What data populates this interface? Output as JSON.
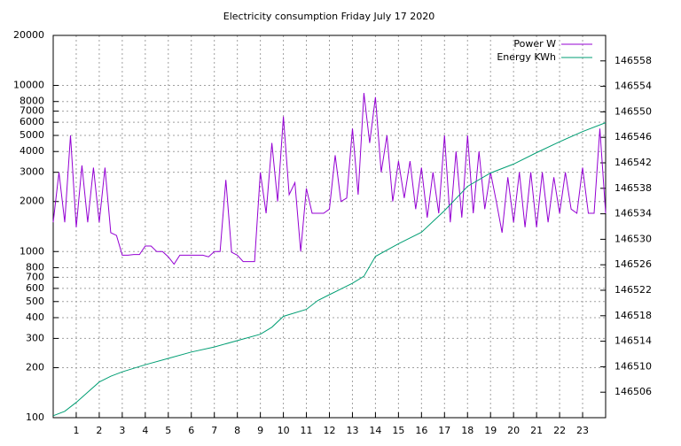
{
  "chart_data": {
    "type": "line",
    "title": "Electricity consumption Friday July 17 2020",
    "xlim": [
      0,
      24
    ],
    "xticks": [
      1,
      2,
      3,
      4,
      5,
      6,
      7,
      8,
      9,
      10,
      11,
      12,
      13,
      14,
      15,
      16,
      17,
      18,
      19,
      20,
      21,
      22,
      23
    ],
    "ylim": [
      100,
      20000
    ],
    "ylog": true,
    "yticks": [
      100,
      200,
      300,
      400,
      500,
      600,
      700,
      800,
      1000,
      2000,
      3000,
      4000,
      5000,
      6000,
      7000,
      8000,
      10000,
      20000
    ],
    "y2lim": [
      146502,
      146562
    ],
    "y2ticks": [
      146506,
      146510,
      146514,
      146518,
      146522,
      146526,
      146530,
      146534,
      146538,
      146542,
      146546,
      146550,
      146554,
      146558
    ],
    "grid": true,
    "legend": "top-right",
    "series": [
      {
        "name": "Power W",
        "color": "#9400d3",
        "x": [
          0,
          0.25,
          0.5,
          0.75,
          1,
          1.25,
          1.5,
          1.75,
          2,
          2.25,
          2.5,
          2.75,
          3,
          3.25,
          3.5,
          3.75,
          4,
          4.25,
          4.5,
          4.75,
          5,
          5.25,
          5.5,
          5.75,
          6,
          6.25,
          6.5,
          6.75,
          7,
          7.25,
          7.5,
          7.75,
          8,
          8.25,
          8.5,
          8.75,
          9,
          9.25,
          9.5,
          9.75,
          10,
          10.25,
          10.5,
          10.75,
          11,
          11.25,
          11.5,
          11.75,
          12,
          12.25,
          12.5,
          12.75,
          13,
          13.25,
          13.5,
          13.75,
          14,
          14.25,
          14.5,
          14.75,
          15,
          15.25,
          15.5,
          15.75,
          16,
          16.25,
          16.5,
          16.75,
          17,
          17.25,
          17.5,
          17.75,
          18,
          18.25,
          18.5,
          18.75,
          19,
          19.25,
          19.5,
          19.75,
          20,
          20.25,
          20.5,
          20.75,
          21,
          21.25,
          21.5,
          21.75,
          22,
          22.25,
          22.5,
          22.75,
          23,
          23.25,
          23.5,
          23.75,
          24
        ],
        "values": [
          1500,
          3000,
          1500,
          5000,
          1400,
          3300,
          1500,
          3200,
          1500,
          3200,
          1300,
          1250,
          950,
          950,
          960,
          960,
          1080,
          1080,
          1000,
          1000,
          930,
          840,
          950,
          950,
          950,
          950,
          950,
          930,
          1000,
          1000,
          2700,
          990,
          950,
          870,
          870,
          870,
          3000,
          1700,
          4500,
          2000,
          6500,
          2200,
          2600,
          1000,
          2400,
          1700,
          1700,
          1700,
          1800,
          3800,
          2000,
          2100,
          5500,
          2200,
          9000,
          4500,
          8500,
          3000,
          5000,
          2000,
          3500,
          2100,
          3500,
          1800,
          3200,
          1600,
          3000,
          1700,
          5000,
          1500,
          4000,
          1600,
          5000,
          1700,
          4000,
          1800,
          3000,
          2000,
          1300,
          2800,
          1500,
          3000,
          1400,
          3000,
          1400,
          3000,
          1500,
          2800,
          1700,
          3000,
          1800,
          1700,
          3200,
          1700,
          1700,
          5500,
          1700
        ]
      },
      {
        "name": "Energy KWh",
        "color": "#009e73",
        "axis": "y2",
        "x": [
          0,
          0.5,
          1,
          1.5,
          2,
          2.5,
          3,
          4,
          5,
          6,
          7,
          8,
          9,
          9.5,
          10,
          11,
          11.5,
          12,
          13,
          13.5,
          14,
          15,
          16,
          17,
          18,
          19,
          20,
          21,
          22,
          23,
          24
        ],
        "values": [
          146502.3,
          146503,
          146504.4,
          146506,
          146507.6,
          146508.5,
          146509.2,
          146510.3,
          146511.3,
          146512.3,
          146513.1,
          146514.1,
          146515.1,
          146516.2,
          146517.9,
          146519,
          146520.4,
          146521.3,
          146523.1,
          146524.2,
          146527.3,
          146529.3,
          146531.1,
          146534.5,
          146538.3,
          146540.4,
          146541.8,
          146543.6,
          146545.3,
          146546.9,
          146548.3
        ]
      }
    ]
  }
}
